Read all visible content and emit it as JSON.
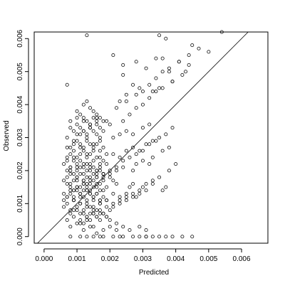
{
  "chart_data": {
    "type": "scatter",
    "title": "",
    "xlabel": "Predicted",
    "ylabel": "Observed",
    "xlim": [
      -0.0003,
      0.0068
    ],
    "ylim": [
      -0.0002,
      0.0062
    ],
    "x_ticks": [
      0.0,
      0.001,
      0.002,
      0.003,
      0.004,
      0.005,
      0.006
    ],
    "x_tick_labels": [
      "0.000",
      "0.001",
      "0.002",
      "0.003",
      "0.004",
      "0.005",
      "0.006"
    ],
    "y_ticks": [
      0.0,
      0.001,
      0.002,
      0.003,
      0.004,
      0.005,
      0.006
    ],
    "y_tick_labels": [
      "0.000",
      "0.001",
      "0.002",
      "0.003",
      "0.004",
      "0.005",
      "0.006"
    ],
    "grid": false,
    "legend": "none",
    "reference_line": {
      "intercept": 0,
      "slope": 1
    },
    "series": [
      {
        "marker": "open-circle",
        "x": [
          0.0007,
          0.0008,
          0.0009,
          0.001,
          0.0011,
          0.0012,
          0.0013,
          0.0014,
          0.0015,
          0.0016,
          0.0017,
          0.0007,
          0.0009,
          0.0011,
          0.0013,
          0.0015,
          0.0017,
          0.0008,
          0.001,
          0.0012,
          0.0014,
          0.0016,
          0.0021,
          0.0022,
          0.0026,
          0.0027,
          0.003,
          0.0033,
          0.0036,
          0.0037,
          0.0006,
          0.0007,
          0.0008,
          0.0009,
          0.001,
          0.0011,
          0.0012,
          0.0013,
          0.0014,
          0.0015,
          0.0016,
          0.0017,
          0.0008,
          0.001,
          0.0012,
          0.0014,
          0.0016,
          0.0018,
          0.0007,
          0.0009,
          0.0011,
          0.0013,
          0.0015,
          0.0019,
          0.002,
          0.0022,
          0.0006,
          0.0008,
          0.001,
          0.0012,
          0.0014,
          0.0016,
          0.0018,
          0.0021,
          0.0023,
          0.0025,
          0.0028,
          0.0006,
          0.0007,
          0.0008,
          0.0009,
          0.001,
          0.0011,
          0.0012,
          0.0013,
          0.0014,
          0.0015,
          0.0016,
          0.0017,
          0.0018,
          0.0007,
          0.0009,
          0.0011,
          0.0013,
          0.0015,
          0.0017,
          0.0019,
          0.0008,
          0.001,
          0.0012,
          0.0014,
          0.0016,
          0.0018,
          0.002,
          0.0022,
          0.0024,
          0.0026,
          0.0029,
          0.0031,
          0.0006,
          0.0007,
          0.0008,
          0.0009,
          0.001,
          0.0011,
          0.0012,
          0.0013,
          0.0014,
          0.0015,
          0.0016,
          0.0017,
          0.0018,
          0.0019,
          0.0007,
          0.0009,
          0.0011,
          0.0013,
          0.0015,
          0.0017,
          0.0008,
          0.001,
          0.0012,
          0.0014,
          0.0016,
          0.0018,
          0.002,
          0.0022,
          0.0024,
          0.0027,
          0.0028,
          0.003,
          0.0032,
          0.0006,
          0.0007,
          0.0008,
          0.0009,
          0.001,
          0.0011,
          0.0012,
          0.0013,
          0.0014,
          0.0015,
          0.0016,
          0.0017,
          0.0018,
          0.002,
          0.0008,
          0.001,
          0.0012,
          0.0014,
          0.0016,
          0.0018,
          0.0009,
          0.0011,
          0.0013,
          0.0015,
          0.0017,
          0.0019,
          0.0021,
          0.0023,
          0.0025,
          0.0027,
          0.0029,
          0.0031,
          0.0033,
          0.0035,
          0.0007,
          0.0008,
          0.0009,
          0.001,
          0.0011,
          0.0012,
          0.0013,
          0.0014,
          0.0015,
          0.0016,
          0.0017,
          0.0018,
          0.0019,
          0.0008,
          0.001,
          0.0012,
          0.0014,
          0.0016,
          0.0018,
          0.002,
          0.0009,
          0.0011,
          0.0013,
          0.0015,
          0.0017,
          0.0019,
          0.0021,
          0.0023,
          0.0025,
          0.0027,
          0.003,
          0.0032,
          0.0007,
          0.0008,
          0.0009,
          0.001,
          0.0011,
          0.0012,
          0.0013,
          0.0014,
          0.0015,
          0.0016,
          0.0017,
          0.0018,
          0.0009,
          0.0011,
          0.0013,
          0.0015,
          0.0017,
          0.0019,
          0.0021,
          0.0023,
          0.0025,
          0.0027,
          0.0029,
          0.0031,
          0.0033,
          0.0036,
          0.0038,
          0.0008,
          0.0009,
          0.001,
          0.0011,
          0.0012,
          0.0013,
          0.0014,
          0.0015,
          0.0016,
          0.0017,
          0.0018,
          0.001,
          0.0012,
          0.0014,
          0.0016,
          0.0018,
          0.002,
          0.0022,
          0.0024,
          0.0026,
          0.0028,
          0.003,
          0.0032,
          0.0034,
          0.0037,
          0.0039,
          0.0009,
          0.001,
          0.0011,
          0.0012,
          0.0013,
          0.0014,
          0.0015,
          0.0016,
          0.0017,
          0.0011,
          0.0013,
          0.0015,
          0.0017,
          0.0019,
          0.0021,
          0.0023,
          0.0025,
          0.0027,
          0.0029,
          0.0031,
          0.0033,
          0.0035,
          0.0038,
          0.004,
          0.001,
          0.0011,
          0.0012,
          0.0013,
          0.0014,
          0.0015,
          0.0016,
          0.0017,
          0.0012,
          0.0014,
          0.0016,
          0.0018,
          0.002,
          0.0024,
          0.0026,
          0.0028,
          0.003,
          0.0032,
          0.0034,
          0.0036,
          0.0039,
          0.0042,
          0.0012,
          0.0013,
          0.0014,
          0.0015,
          0.0016,
          0.0017,
          0.0019,
          0.0022,
          0.0025,
          0.0028,
          0.003,
          0.0032,
          0.0034,
          0.0036,
          0.0038,
          0.0041,
          0.0044,
          0.0011,
          0.0015,
          0.0017,
          0.0021,
          0.0023,
          0.0027,
          0.0029,
          0.0031,
          0.0033,
          0.0035,
          0.0037,
          0.0039,
          0.0042,
          0.0045,
          0.0008,
          0.0013,
          0.0018,
          0.0024,
          0.0031,
          0.0007,
          0.0013,
          0.0035,
          0.0037,
          0.0054,
          0.0034,
          0.0028,
          0.0024,
          0.0031,
          0.0043,
          0.0021,
          0.0024,
          0.0038,
          0.0044,
          0.0035,
          0.0039,
          0.0027,
          0.0033,
          0.0025,
          0.0029,
          0.0041,
          0.0036,
          0.0023,
          0.0045,
          0.0047,
          0.005
        ],
        "y": [
          0.0016,
          0.0015,
          0.0014,
          0.0017,
          0.0013,
          0.0016,
          0.0015,
          0.0014,
          0.0012,
          0.0013,
          0.0011,
          0.0012,
          0.0011,
          0.0012,
          0.001,
          0.0011,
          0.001,
          0.0019,
          0.0018,
          0.0017,
          0.0018,
          0.0016,
          0.0017,
          0.0016,
          0.0015,
          0.0016,
          0.0015,
          0.0016,
          0.0014,
          0.0015,
          0.0009,
          0.001,
          0.0008,
          0.0011,
          0.0009,
          0.001,
          0.0008,
          0.0009,
          0.0007,
          0.0008,
          0.0006,
          0.0007,
          0.002,
          0.0021,
          0.0019,
          0.0022,
          0.002,
          0.0019,
          0.0005,
          0.0006,
          0.0004,
          0.0005,
          0.0003,
          0.0006,
          0.0005,
          0.0004,
          0.0013,
          0.0014,
          0.0015,
          0.0014,
          0.0013,
          0.0015,
          0.0014,
          0.0013,
          0.0012,
          0.0013,
          0.0012,
          0.0022,
          0.0023,
          0.0021,
          0.0024,
          0.0022,
          0.0023,
          0.0021,
          0.0022,
          0.002,
          0.0021,
          0.0019,
          0.002,
          0.0018,
          0.0027,
          0.0026,
          0.0027,
          0.0025,
          0.0026,
          0.0024,
          0.0025,
          0.0003,
          0.0004,
          0.0002,
          0.0003,
          0.0001,
          0.0002,
          0.0003,
          0.0002,
          0.0003,
          0.0002,
          0.0003,
          0.0002,
          0.0011,
          0.0012,
          0.0013,
          0.0012,
          0.0014,
          0.0013,
          0.0012,
          0.0014,
          0.0013,
          0.0012,
          0.0013,
          0.0011,
          0.0012,
          0.0011,
          0.003,
          0.0029,
          0.0031,
          0.003,
          0.0028,
          0.0029,
          0.0007,
          0.0008,
          0.0007,
          0.0009,
          0.0008,
          0.0007,
          0.0019,
          0.002,
          0.0021,
          0.002,
          0.0022,
          0.0023,
          0.0022,
          0.0017,
          0.0018,
          0.0016,
          0.0017,
          0.0018,
          0.0019,
          0.0017,
          0.0018,
          0.0016,
          0.0017,
          0.0018,
          0.0016,
          0.0017,
          0.0018,
          0.0033,
          0.0034,
          0.0032,
          0.0033,
          0.0034,
          0.0032,
          0.0011,
          0.001,
          0.0011,
          0.0009,
          0.001,
          0.0011,
          0.0025,
          0.0024,
          0.0026,
          0.0027,
          0.0026,
          0.0028,
          0.0029,
          0.003,
          0.0024,
          0.0025,
          0.0023,
          0.0024,
          0.0025,
          0.0026,
          0.0024,
          0.0025,
          0.0023,
          0.0024,
          0.0022,
          0.0023,
          0.0022,
          0.0035,
          0.0036,
          0.0035,
          0.0034,
          0.0036,
          0.0035,
          0.0034,
          0.0014,
          0.0015,
          0.0016,
          0.0015,
          0.0014,
          0.0015,
          0.003,
          0.0031,
          0.0032,
          0.0031,
          0.0033,
          0.0034,
          0.002,
          0.0021,
          0.0019,
          0.002,
          0.0021,
          0.0022,
          0.002,
          0.0021,
          0.0019,
          0.002,
          0.0021,
          0.0019,
          0.0008,
          0.0007,
          0.0006,
          0.0007,
          0.0005,
          0.0006,
          0.0009,
          0.001,
          0.0011,
          0.0012,
          0.0013,
          0.0014,
          0.0024,
          0.0026,
          0.0027,
          0.0027,
          0.0028,
          0.0029,
          0.0028,
          0.0027,
          0.0029,
          0.0028,
          0.0027,
          0.0028,
          0.0026,
          0.0027,
          0.0015,
          0.0016,
          0.0017,
          0.0018,
          0.0019,
          0.002,
          0.0021,
          0.0023,
          0.0024,
          0.0025,
          0.0026,
          0.0028,
          0.0029,
          0.0031,
          0.0033,
          0.0032,
          0.0031,
          0.0033,
          0.0032,
          0.0031,
          0.0033,
          0.0032,
          0.0031,
          0.003,
          0.0005,
          0.0006,
          0.0007,
          0.0008,
          0.0009,
          0.001,
          0.0011,
          0.0012,
          0.0013,
          0.0014,
          0.0016,
          0.0017,
          0.0018,
          0.002,
          0.0022,
          0.0038,
          0.0037,
          0.0036,
          0.0035,
          0.0034,
          0.0036,
          0.0035,
          0.0033,
          0.0004,
          0.0005,
          0.0006,
          0.0007,
          0.0008,
          0.0035,
          0.0037,
          0.0039,
          0.004,
          0.0042,
          0.0044,
          0.0045,
          0.0047,
          0.0049,
          0.004,
          0.0041,
          0.0039,
          0.0038,
          0.0037,
          0.0036,
          0.0035,
          0.0039,
          0.0041,
          0.0043,
          0.0044,
          0.0046,
          0.0048,
          0.005,
          0.0051,
          0.0053,
          0.0055,
          0.0,
          0.0,
          0.0,
          0.0,
          0.0,
          0.0,
          0.0,
          0.0,
          0.0,
          0.0,
          0.0,
          0.0,
          0.0,
          0.0,
          0.0,
          0.0,
          0.0,
          0.0,
          0.0,
          0.0046,
          0.0061,
          0.0061,
          0.006,
          0.0062,
          0.0054,
          0.0053,
          0.0052,
          0.0051,
          0.005,
          0.0055,
          0.0049,
          0.005,
          0.0052,
          0.0045,
          0.0047,
          0.0046,
          0.0044,
          0.0043,
          0.0045,
          0.0053,
          0.0054,
          0.0041,
          0.0058,
          0.0057,
          0.0056
        ]
      }
    ]
  }
}
